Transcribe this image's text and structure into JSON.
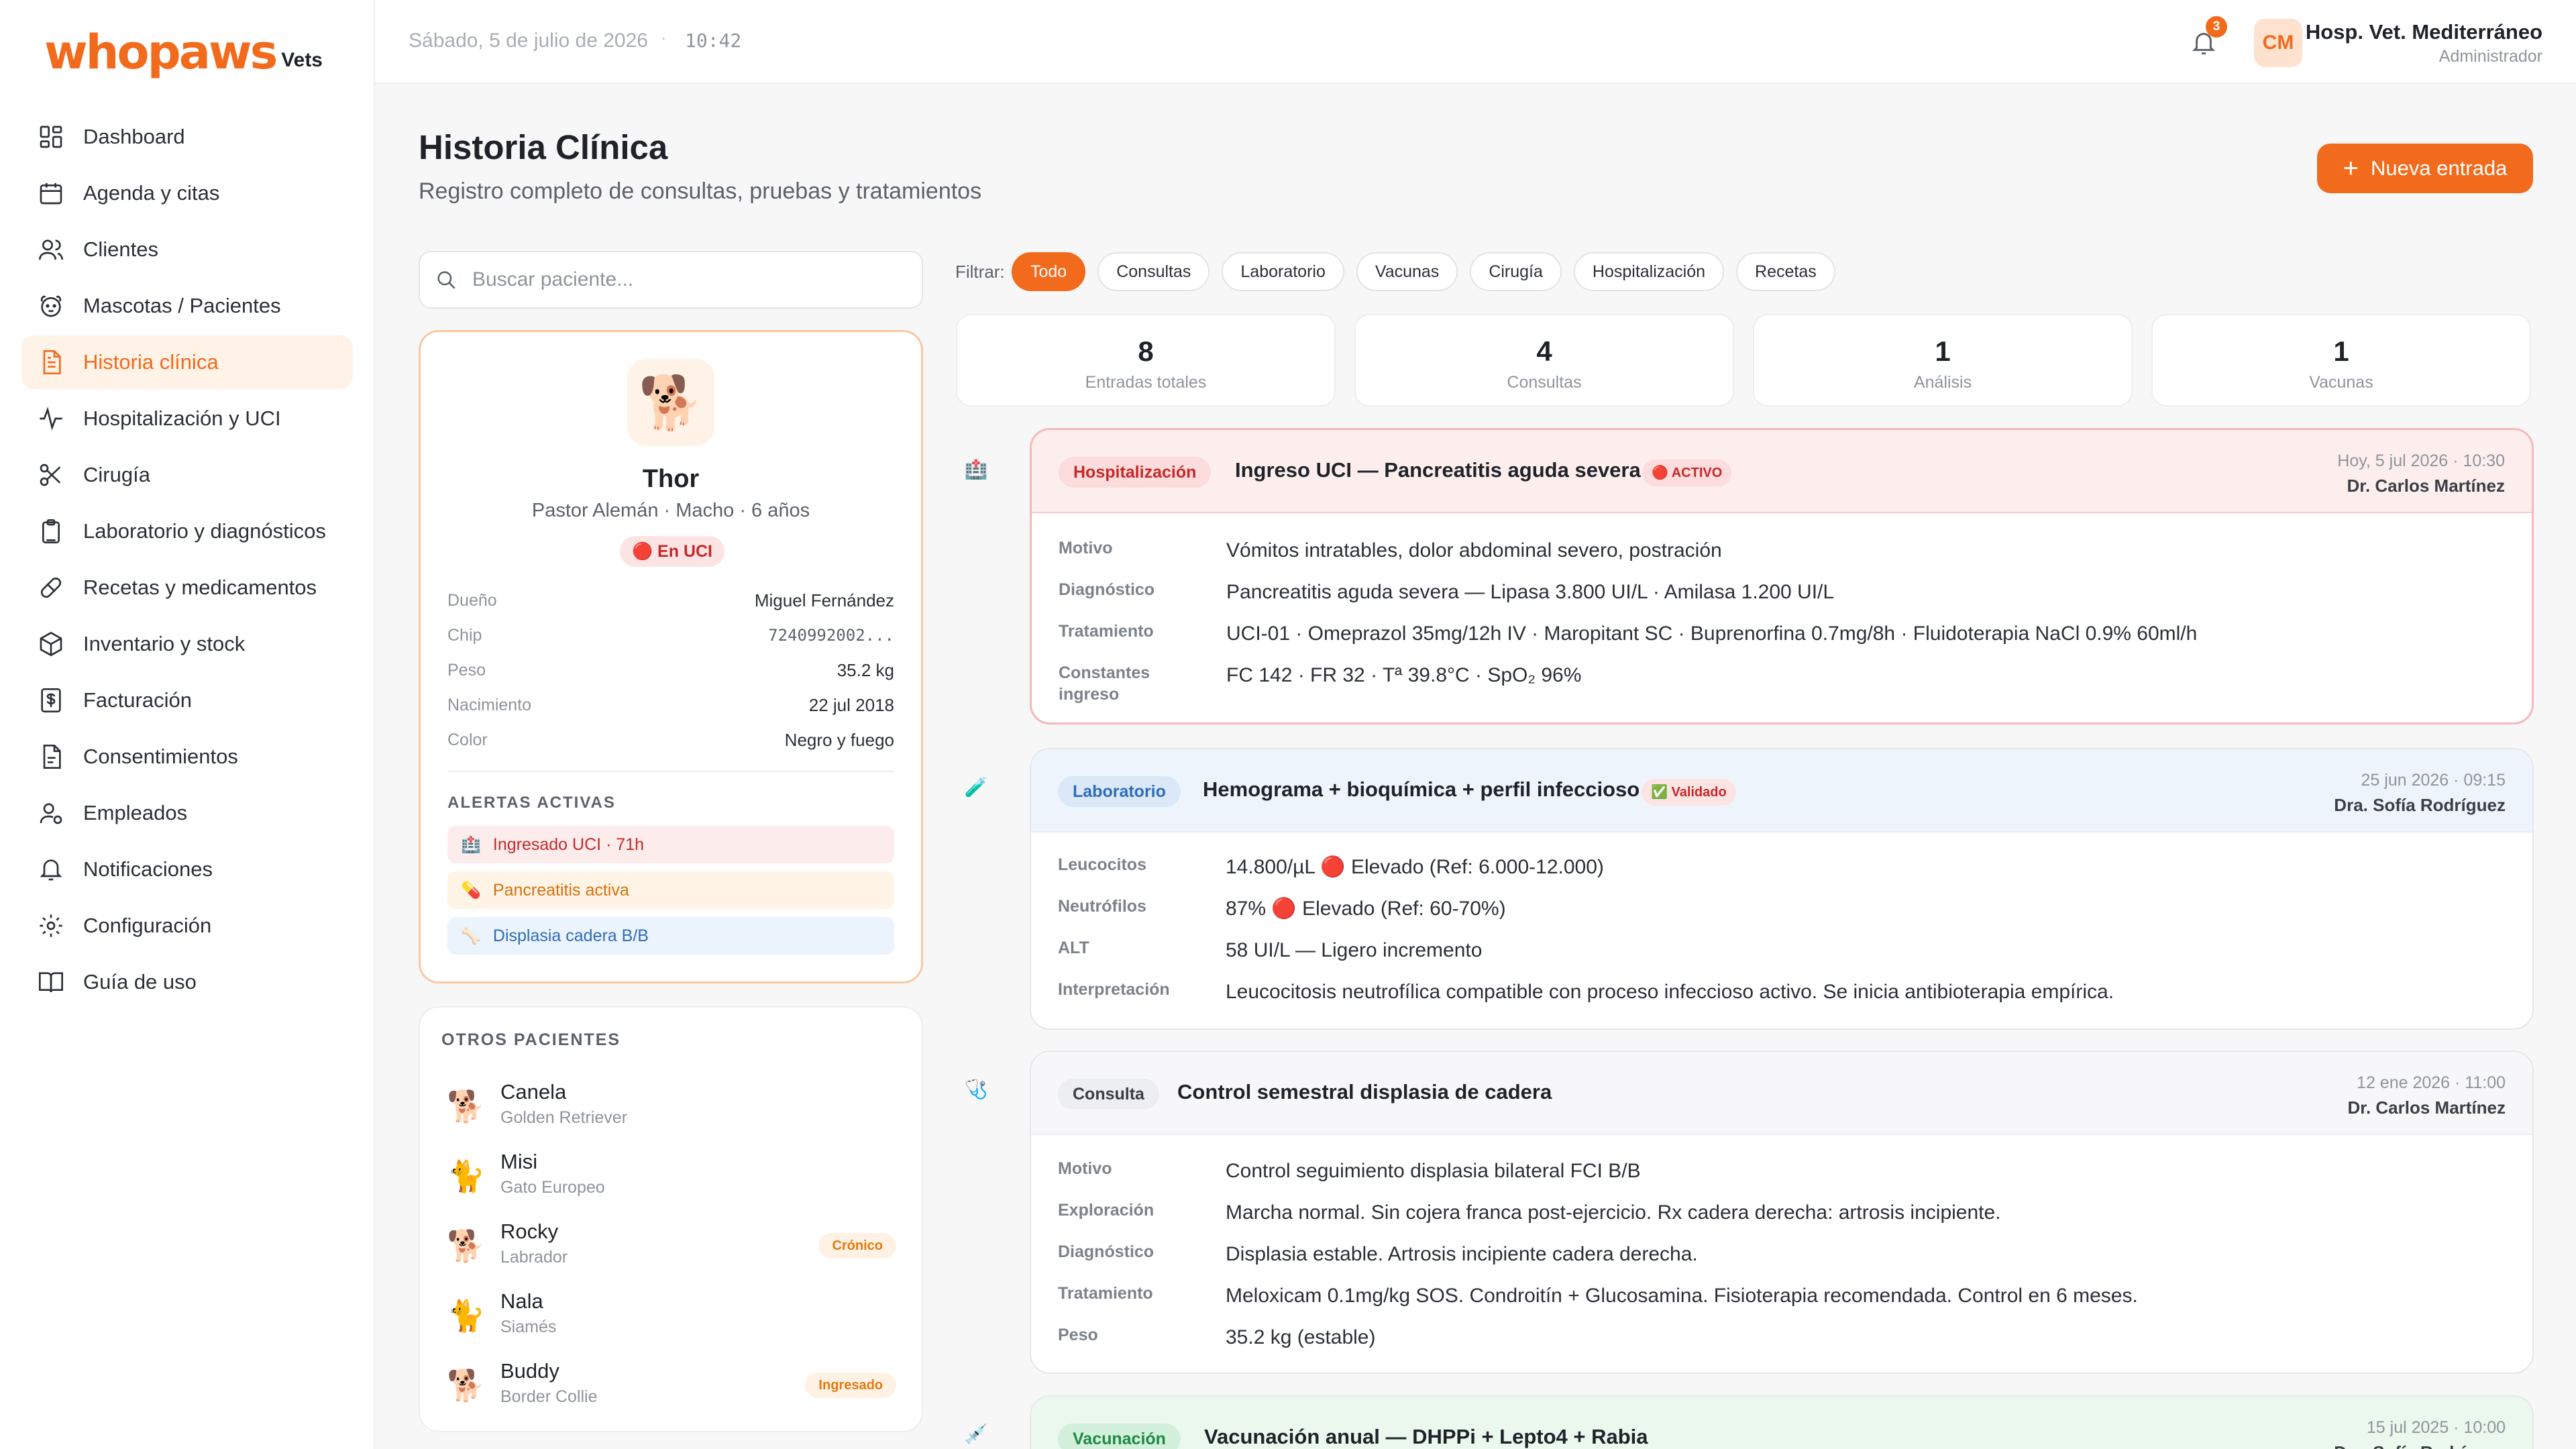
{
  "brand": {
    "name": "whopaws",
    "suffix": "Vets"
  },
  "sidebar": {
    "items": [
      {
        "label": "Dashboard",
        "icon": "dashboard-icon"
      },
      {
        "label": "Agenda y citas",
        "icon": "calendar-icon"
      },
      {
        "label": "Clientes",
        "icon": "users-icon"
      },
      {
        "label": "Mascotas / Pacientes",
        "icon": "paw-icon"
      },
      {
        "label": "Historia clínica",
        "icon": "document-icon",
        "active": true
      },
      {
        "label": "Hospitalización y UCI",
        "icon": "activity-icon"
      },
      {
        "label": "Cirugía",
        "icon": "scissors-icon"
      },
      {
        "label": "Laboratorio y diagnósticos",
        "icon": "clipboard-icon"
      },
      {
        "label": "Recetas y medicamentos",
        "icon": "pill-icon"
      },
      {
        "label": "Inventario y stock",
        "icon": "box-icon"
      },
      {
        "label": "Facturación",
        "icon": "invoice-icon"
      },
      {
        "label": "Consentimientos",
        "icon": "file-icon"
      },
      {
        "label": "Empleados",
        "icon": "employee-icon"
      },
      {
        "label": "Notificaciones",
        "icon": "bell-icon"
      },
      {
        "label": "Configuración",
        "icon": "gear-icon"
      },
      {
        "label": "Guía de uso",
        "icon": "book-icon"
      }
    ]
  },
  "header": {
    "date": "Sábado, 5 de julio de 2026",
    "separator": "·",
    "time": "10:42",
    "notifications": "3",
    "avatar_initials": "CM",
    "hospital": "Hosp. Vet. Mediterráneo",
    "role": "Administrador"
  },
  "page": {
    "title": "Historia Clínica",
    "subtitle": "Registro completo de consultas, pruebas y tratamientos",
    "new_entry": "Nueva entrada",
    "new_entry_plus": "+"
  },
  "search": {
    "placeholder": "Buscar paciente..."
  },
  "patient": {
    "emoji": "🐕",
    "name": "Thor",
    "meta": "Pastor Alemán · Macho · 6 años",
    "status": "🔴 En UCI",
    "info": [
      {
        "label": "Dueño",
        "value": "Miguel Fernández"
      },
      {
        "label": "Chip",
        "value": "7240992002..."
      },
      {
        "label": "Peso",
        "value": "35.2 kg"
      },
      {
        "label": "Nacimiento",
        "value": "22 jul 2018"
      },
      {
        "label": "Color",
        "value": "Negro y fuego"
      }
    ],
    "alerts_title": "ALERTAS ACTIVAS",
    "alerts": [
      {
        "icon": "🏥",
        "text": "Ingresado UCI · 71h"
      },
      {
        "icon": "💊",
        "text": "Pancreatitis activa"
      },
      {
        "icon": "🦴",
        "text": "Displasia cadera B/B"
      }
    ]
  },
  "others": {
    "title": "OTROS PACIENTES",
    "list": [
      {
        "emoji": "🐕",
        "name": "Canela",
        "breed": "Golden Retriever",
        "tag": ""
      },
      {
        "emoji": "🐈",
        "name": "Misi",
        "breed": "Gato Europeo",
        "tag": ""
      },
      {
        "emoji": "🐕",
        "name": "Rocky",
        "breed": "Labrador",
        "tag": "Crónico"
      },
      {
        "emoji": "🐈",
        "name": "Nala",
        "breed": "Siamés",
        "tag": ""
      },
      {
        "emoji": "🐕",
        "name": "Buddy",
        "breed": "Border Collie",
        "tag": "Ingresado"
      }
    ]
  },
  "filters": {
    "label": "Filtrar:",
    "options": [
      "Todo",
      "Consultas",
      "Laboratorio",
      "Vacunas",
      "Cirugía",
      "Hospitalización",
      "Recetas"
    ],
    "selected": "Todo"
  },
  "stats": [
    {
      "value": "8",
      "label": "Entradas totales"
    },
    {
      "value": "4",
      "label": "Consultas"
    },
    {
      "value": "1",
      "label": "Análisis"
    },
    {
      "value": "1",
      "label": "Vacunas"
    }
  ],
  "entries": [
    {
      "icon": "🏥",
      "type": "Hospitalización",
      "title": "Ingreso UCI — Pancreatitis aguda severa",
      "pill": "🔴 ACTIVO",
      "date": "Hoy, 5 jul 2026 · 10:30",
      "doctor": "Dr. Carlos Martínez",
      "rows": [
        {
          "k": "Motivo",
          "v": "Vómitos intratables, dolor abdominal severo, postración"
        },
        {
          "k": "Diagnóstico",
          "v": "Pancreatitis aguda severa — Lipasa 3.800 UI/L · Amilasa 1.200 UI/L"
        },
        {
          "k": "Tratamiento",
          "v": "UCI-01 · Omeprazol 35mg/12h IV · Maropitant SC · Buprenorfina 0.7mg/8h · Fluidoterapia NaCl 0.9% 60ml/h"
        },
        {
          "k": "Constantes ingreso",
          "v": "FC 142 · FR 32 · Tª 39.8°C · SpO₂ 96%"
        }
      ]
    },
    {
      "icon": "🧪",
      "type": "Laboratorio",
      "title": "Hemograma + bioquímica + perfil infeccioso",
      "pill": "✅ Validado",
      "date": "25 jun 2026 · 09:15",
      "doctor": "Dra. Sofía Rodríguez",
      "rows": [
        {
          "k": "Leucocitos",
          "v": "14.800/µL 🔴 Elevado (Ref: 6.000-12.000)"
        },
        {
          "k": "Neutrófilos",
          "v": "87% 🔴 Elevado (Ref: 60-70%)"
        },
        {
          "k": "ALT",
          "v": "58 UI/L — Ligero incremento"
        },
        {
          "k": "Interpretación",
          "v": "Leucocitosis neutrofílica compatible con proceso infeccioso activo. Se inicia antibioterapia empírica."
        }
      ]
    },
    {
      "icon": "🩺",
      "type": "Consulta",
      "title": "Control semestral displasia de cadera",
      "pill": "",
      "date": "12 ene 2026 · 11:00",
      "doctor": "Dr. Carlos Martínez",
      "rows": [
        {
          "k": "Motivo",
          "v": "Control seguimiento displasia bilateral FCI B/B"
        },
        {
          "k": "Exploración",
          "v": "Marcha normal. Sin cojera franca post-ejercicio. Rx cadera derecha: artrosis incipiente."
        },
        {
          "k": "Diagnóstico",
          "v": "Displasia estable. Artrosis incipiente cadera derecha."
        },
        {
          "k": "Tratamiento",
          "v": "Meloxicam 0.1mg/kg SOS. Condroitín + Glucosamina. Fisioterapia recomendada. Control en 6 meses."
        },
        {
          "k": "Peso",
          "v": "35.2 kg (estable)"
        }
      ]
    },
    {
      "icon": "💉",
      "type": "Vacunación",
      "title": "Vacunación anual — DHPPi + Lepto4 + Rabia",
      "pill": "",
      "date": "15 jul 2025 · 10:00",
      "doctor": "Dra. Sofía Rodríguez",
      "rows": []
    }
  ],
  "colors": {
    "accent": "#f26a1b",
    "danger": "#c62828",
    "info": "#2f6db8",
    "success": "#1f8a45"
  }
}
